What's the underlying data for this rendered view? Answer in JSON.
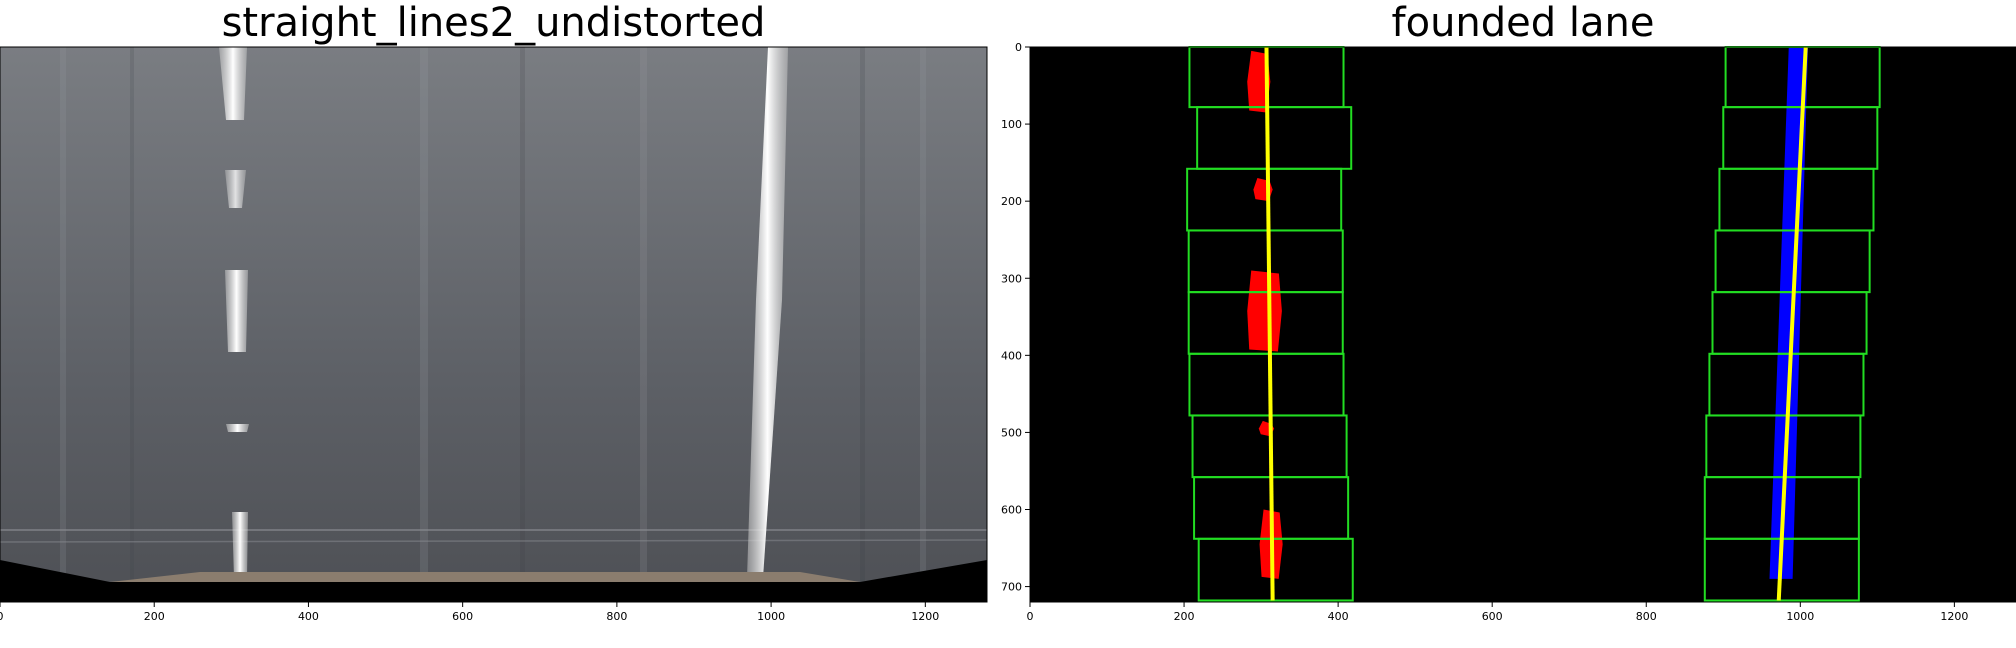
{
  "panels": [
    {
      "title": "straight_lines2_undistorted",
      "x_ticks": [
        0,
        200,
        400,
        600,
        800,
        1000,
        1200
      ]
    },
    {
      "title": "founded lane",
      "x_ticks": [
        0,
        200,
        400,
        600,
        800,
        1000,
        1200
      ],
      "y_ticks": [
        0,
        100,
        200,
        300,
        400,
        500,
        600,
        700
      ]
    }
  ],
  "colors": {
    "window_box": "#22dd22",
    "left_lane_pixels": "#ff0000",
    "right_lane_pixels": "#0000ff",
    "fit_line": "#ffff00",
    "background": "#000000"
  },
  "image_extent": {
    "x": [
      0,
      1280
    ],
    "y": [
      0,
      720
    ]
  },
  "windows_left": [
    {
      "x": [
        207,
        407
      ],
      "y": [
        0,
        78
      ]
    },
    {
      "x": [
        217,
        417
      ],
      "y": [
        78,
        158
      ]
    },
    {
      "x": [
        204,
        404
      ],
      "y": [
        158,
        238
      ]
    },
    {
      "x": [
        206,
        406
      ],
      "y": [
        238,
        318
      ]
    },
    {
      "x": [
        206,
        406
      ],
      "y": [
        318,
        398
      ]
    },
    {
      "x": [
        207,
        407
      ],
      "y": [
        398,
        478
      ]
    },
    {
      "x": [
        211,
        411
      ],
      "y": [
        478,
        558
      ]
    },
    {
      "x": [
        213,
        413
      ],
      "y": [
        558,
        638
      ]
    },
    {
      "x": [
        219,
        419
      ],
      "y": [
        638,
        718
      ]
    }
  ],
  "windows_right": [
    {
      "x": [
        903,
        1103
      ],
      "y": [
        0,
        78
      ]
    },
    {
      "x": [
        900,
        1100
      ],
      "y": [
        78,
        158
      ]
    },
    {
      "x": [
        895,
        1095
      ],
      "y": [
        158,
        238
      ]
    },
    {
      "x": [
        890,
        1090
      ],
      "y": [
        238,
        318
      ]
    },
    {
      "x": [
        886,
        1086
      ],
      "y": [
        318,
        398
      ]
    },
    {
      "x": [
        882,
        1082
      ],
      "y": [
        398,
        478
      ]
    },
    {
      "x": [
        878,
        1078
      ],
      "y": [
        478,
        558
      ]
    },
    {
      "x": [
        876,
        1076
      ],
      "y": [
        558,
        638
      ]
    },
    {
      "x": [
        876,
        1076
      ],
      "y": [
        638,
        718
      ]
    }
  ],
  "left_fit_line": {
    "x": [
      307,
      315
    ],
    "y": [
      0,
      718
    ]
  },
  "right_fit_line": {
    "x": [
      1007,
      972
    ],
    "y": [
      0,
      718
    ]
  },
  "left_pixel_clusters": [
    {
      "x": [
        282,
        312
      ],
      "y": [
        5,
        85
      ]
    },
    {
      "x": [
        290,
        315
      ],
      "y": [
        170,
        200
      ]
    },
    {
      "x": [
        282,
        327
      ],
      "y": [
        290,
        395
      ]
    },
    {
      "x": [
        297,
        317
      ],
      "y": [
        485,
        505
      ]
    },
    {
      "x": [
        298,
        328
      ],
      "y": [
        600,
        690
      ]
    }
  ],
  "right_pixel_start": {
    "x": [
      985,
      1010
    ],
    "y": 0
  },
  "right_pixel_end": {
    "x": [
      960,
      990
    ],
    "y": 690
  }
}
